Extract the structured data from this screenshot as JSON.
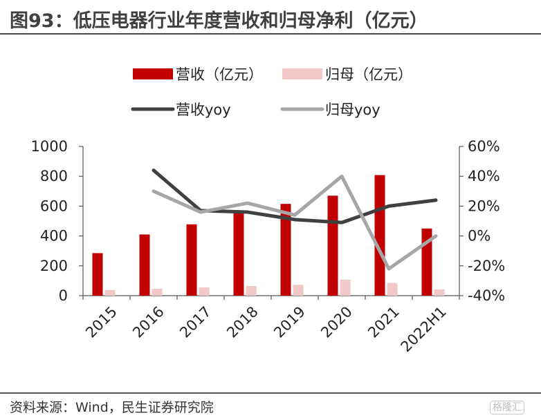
{
  "header": {
    "title": "图93：低压电器行业年度营收和归母净利（亿元）"
  },
  "footer": {
    "source": "资料来源：Wind，民生证券研究院",
    "watermark": "格隆汇"
  },
  "chart_data": {
    "type": "bar",
    "categories": [
      "2015",
      "2016",
      "2017",
      "2018",
      "2019",
      "2020",
      "2021",
      "2022H1"
    ],
    "series": [
      {
        "name": "营收（亿元）",
        "type": "bar",
        "axis": "left",
        "color": "#c00000",
        "values": [
          285,
          410,
          478,
          563,
          615,
          670,
          808,
          450
        ]
      },
      {
        "name": "归母（亿元）",
        "type": "bar",
        "axis": "left",
        "color": "#f2c7c7",
        "values": [
          38,
          46,
          55,
          65,
          73,
          107,
          85,
          42
        ]
      },
      {
        "name": "营收yoy",
        "type": "line",
        "axis": "right",
        "color": "#404040",
        "values": [
          null,
          44,
          17,
          16,
          11,
          9,
          20,
          24
        ]
      },
      {
        "name": "归母yoy",
        "type": "line",
        "axis": "right",
        "color": "#a6a6a6",
        "values": [
          null,
          30,
          16,
          22,
          14,
          40,
          -22,
          0
        ]
      }
    ],
    "y_left": {
      "min": 0,
      "max": 1000,
      "ticks": [
        "0",
        "200",
        "400",
        "600",
        "800",
        "1000"
      ]
    },
    "y_right": {
      "min": -40,
      "max": 60,
      "ticks": [
        "-40%",
        "-20%",
        "0%",
        "20%",
        "40%",
        "60%"
      ]
    },
    "legend_position": "top",
    "grid": false
  }
}
